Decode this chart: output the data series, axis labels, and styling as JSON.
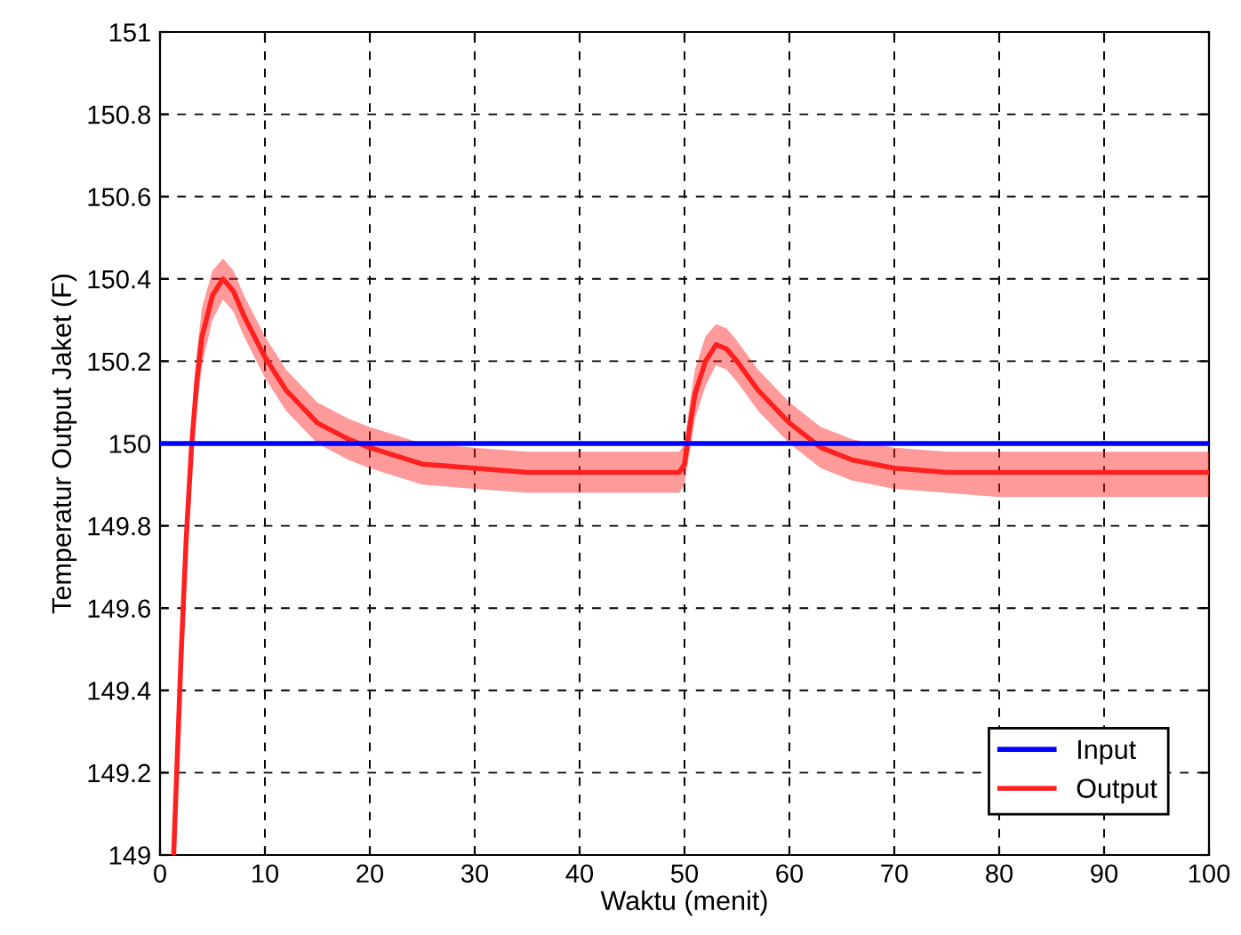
{
  "chart_data": {
    "type": "line",
    "xlabel": "Waktu (menit)",
    "ylabel": "Temperatur Output Jaket (F)",
    "xlim": [
      0,
      100
    ],
    "xticks": [
      0,
      10,
      20,
      30,
      40,
      50,
      60,
      70,
      80,
      90,
      100
    ],
    "ylim": [
      149,
      151
    ],
    "yticks": [
      149,
      149.2,
      149.4,
      149.6,
      149.8,
      150,
      150.2,
      150.4,
      150.6,
      150.8,
      151
    ],
    "grid": true,
    "legend": "bottom right",
    "line_style": "solid",
    "series": [
      {
        "name": "Input",
        "color": "#0000ff",
        "x": [
          0,
          100
        ],
        "values": [
          150,
          150
        ]
      },
      {
        "name": "Output",
        "color": "#ff2020",
        "x": [
          1.3,
          2,
          2.5,
          3,
          3.5,
          4,
          5,
          6,
          7,
          8,
          10,
          12,
          15,
          18,
          20,
          25,
          30,
          35,
          40,
          45,
          49.5,
          50,
          50.5,
          51,
          52,
          53,
          54,
          55,
          57,
          60,
          63,
          66,
          70,
          75,
          80,
          90,
          100
        ],
        "values": [
          149.0,
          149.48,
          149.77,
          149.99,
          150.15,
          150.26,
          150.36,
          150.4,
          150.37,
          150.31,
          150.21,
          150.13,
          150.05,
          150.01,
          149.99,
          149.95,
          149.94,
          149.93,
          149.93,
          149.93,
          149.93,
          149.95,
          150.04,
          150.12,
          150.2,
          150.24,
          150.23,
          150.2,
          150.13,
          150.05,
          149.99,
          149.96,
          149.94,
          149.93,
          149.93,
          149.93,
          149.93
        ],
        "lower": [
          149.0,
          149.46,
          149.74,
          149.93,
          150.08,
          150.19,
          150.3,
          150.35,
          150.32,
          150.26,
          150.16,
          150.08,
          150.0,
          149.96,
          149.94,
          149.9,
          149.89,
          149.88,
          149.88,
          149.88,
          149.88,
          149.9,
          149.98,
          150.06,
          150.14,
          150.19,
          150.18,
          150.15,
          150.08,
          150.0,
          149.94,
          149.91,
          149.89,
          149.88,
          149.87,
          149.87,
          149.87
        ],
        "upper": [
          149.0,
          149.5,
          149.8,
          150.05,
          150.22,
          150.33,
          150.42,
          150.45,
          150.42,
          150.36,
          150.26,
          150.18,
          150.1,
          150.06,
          150.04,
          150.0,
          149.99,
          149.98,
          149.98,
          149.98,
          149.98,
          150.0,
          150.1,
          150.18,
          150.26,
          150.29,
          150.28,
          150.25,
          150.18,
          150.1,
          150.04,
          150.01,
          149.99,
          149.98,
          149.98,
          149.98,
          149.98
        ]
      }
    ]
  }
}
